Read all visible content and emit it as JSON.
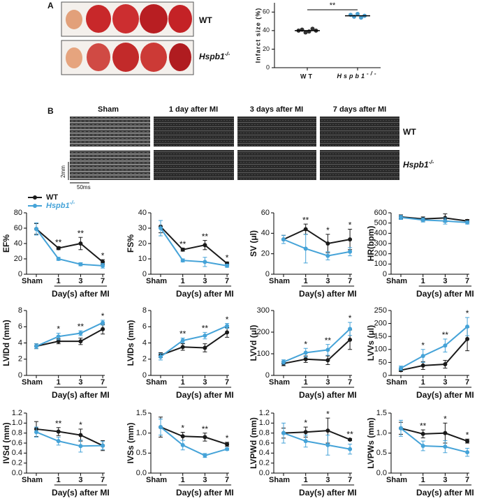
{
  "panels": {
    "a": "A",
    "b": "B",
    "genotypes": [
      "WT",
      "Hspb1-/-"
    ],
    "echo_headers": [
      "Sham",
      "1 day after MI",
      "3 days after MI",
      "7 days after MI"
    ],
    "scale_y": "2mm",
    "scale_x": "50ms"
  },
  "legend": [
    {
      "name": "WT",
      "color": "#1a1a1a"
    },
    {
      "name": "Hspb1-/-",
      "color": "#45a3d8"
    }
  ],
  "chart_data": [
    {
      "type": "dot",
      "ylabel": "Infarct size (%)",
      "categories": [
        "WT",
        "Hspb1-/-"
      ],
      "values": [
        [
          40,
          41,
          38,
          39,
          42,
          40
        ],
        [
          57,
          55,
          58,
          54,
          56
        ]
      ],
      "means": [
        40,
        56
      ],
      "colors": [
        "#333333",
        "#4a9fd0"
      ],
      "ylim": [
        0,
        70
      ],
      "yticks": [
        0,
        20,
        40,
        60
      ],
      "annotation": "**"
    },
    {
      "type": "line",
      "ylabel": "EF%",
      "xlabel": "Day(s) after MI",
      "categories": [
        "Sham",
        "1",
        "3",
        "7"
      ],
      "ylim": [
        0,
        80
      ],
      "yticks": [
        0,
        20,
        40,
        60,
        80
      ],
      "stars": [
        null,
        "**",
        "**",
        "*"
      ],
      "series": [
        {
          "color": "#1a1a1a",
          "values": [
            59,
            34,
            40,
            16
          ],
          "errors": [
            7,
            2,
            8,
            3
          ]
        },
        {
          "color": "#45a3d8",
          "values": [
            59,
            20,
            13,
            11
          ],
          "errors": [
            8,
            2,
            2,
            3
          ]
        }
      ]
    },
    {
      "type": "line",
      "ylabel": "FS%",
      "xlabel": "Day(s) after MI",
      "categories": [
        "Sham",
        "1",
        "3",
        "7"
      ],
      "ylim": [
        0,
        40
      ],
      "yticks": [
        0,
        10,
        20,
        30,
        40
      ],
      "stars": [
        null,
        "**",
        "**",
        "*"
      ],
      "series": [
        {
          "color": "#1a1a1a",
          "values": [
            31,
            16,
            19,
            7
          ],
          "errors": [
            4,
            1,
            3,
            1
          ]
        },
        {
          "color": "#45a3d8",
          "values": [
            30,
            9,
            8,
            5.5
          ],
          "errors": [
            5,
            1,
            3,
            1
          ]
        }
      ]
    },
    {
      "type": "line",
      "ylabel": "SV (μl)",
      "xlabel": "Day(s) after MI",
      "categories": [
        "Sham",
        "1",
        "3",
        "7"
      ],
      "ylim": [
        0,
        60
      ],
      "yticks": [
        0,
        20,
        40,
        60
      ],
      "stars": [
        null,
        "**",
        "*",
        "*"
      ],
      "series": [
        {
          "color": "#1a1a1a",
          "values": [
            34,
            44,
            30,
            34
          ],
          "errors": [
            4,
            5,
            9,
            10
          ]
        },
        {
          "color": "#45a3d8",
          "values": [
            34,
            25,
            18,
            22
          ],
          "errors": [
            4,
            14,
            4,
            4
          ]
        }
      ]
    },
    {
      "type": "line",
      "ylabel": "HR(bpm)",
      "xlabel": "Day(s) after MI",
      "categories": [
        "Sham",
        "1",
        "3",
        "7"
      ],
      "ylim": [
        0,
        600
      ],
      "yticks": [
        0,
        100,
        200,
        300,
        400,
        500,
        600
      ],
      "series": [
        {
          "color": "#1a1a1a",
          "values": [
            560,
            540,
            550,
            520
          ],
          "errors": [
            20,
            20,
            40,
            15
          ]
        },
        {
          "color": "#45a3d8",
          "values": [
            555,
            530,
            520,
            505
          ],
          "errors": [
            20,
            20,
            30,
            15
          ]
        }
      ]
    },
    {
      "type": "line",
      "ylabel": "LVIDd (mm)",
      "xlabel": "Day(s) after MI",
      "categories": [
        "Sham",
        "1",
        "3",
        "7"
      ],
      "ylim": [
        0,
        8
      ],
      "yticks": [
        0,
        2,
        4,
        6,
        8
      ],
      "stars": [
        null,
        "*",
        "**",
        "*"
      ],
      "series": [
        {
          "color": "#1a1a1a",
          "values": [
            3.6,
            4.2,
            4.2,
            5.7
          ],
          "errors": [
            0.3,
            0.3,
            0.4,
            0.6
          ]
        },
        {
          "color": "#45a3d8",
          "values": [
            3.6,
            4.8,
            5.2,
            6.5
          ],
          "errors": [
            0.3,
            0.4,
            0.3,
            0.3
          ]
        }
      ]
    },
    {
      "type": "line",
      "ylabel": "LVIDs (mm)",
      "xlabel": "Day(s) after MI",
      "categories": [
        "Sham",
        "1",
        "3",
        "7"
      ],
      "ylim": [
        0,
        8
      ],
      "yticks": [
        0,
        2,
        4,
        6,
        8
      ],
      "stars": [
        null,
        "**",
        "**",
        "*"
      ],
      "series": [
        {
          "color": "#1a1a1a",
          "values": [
            2.5,
            3.5,
            3.4,
            5.3
          ],
          "errors": [
            0.3,
            0.4,
            0.5,
            0.6
          ]
        },
        {
          "color": "#45a3d8",
          "values": [
            2.3,
            4.3,
            4.9,
            6.1
          ],
          "errors": [
            0.4,
            0.3,
            0.4,
            0.3
          ]
        }
      ]
    },
    {
      "type": "line",
      "ylabel": "LVVd (μl)",
      "xlabel": "Day(s) after MI",
      "categories": [
        "Sham",
        "1",
        "3",
        "7"
      ],
      "ylim": [
        0,
        300
      ],
      "yticks": [
        0,
        100,
        200,
        300
      ],
      "stars": [
        null,
        "*",
        "**",
        "*"
      ],
      "series": [
        {
          "color": "#1a1a1a",
          "values": [
            55,
            75,
            70,
            165
          ],
          "errors": [
            10,
            15,
            20,
            45
          ]
        },
        {
          "color": "#45a3d8",
          "values": [
            62,
            105,
            118,
            215
          ],
          "errors": [
            10,
            20,
            25,
            30
          ]
        }
      ]
    },
    {
      "type": "line",
      "ylabel": "LVVs (μl)",
      "xlabel": "Day(s) after MI",
      "categories": [
        "Sham",
        "1",
        "3",
        "7"
      ],
      "ylim": [
        0,
        250
      ],
      "yticks": [
        0,
        50,
        100,
        150,
        200,
        250
      ],
      "stars": [
        null,
        "*",
        "**",
        "*"
      ],
      "series": [
        {
          "color": "#1a1a1a",
          "values": [
            20,
            38,
            43,
            140
          ],
          "errors": [
            5,
            15,
            15,
            45
          ]
        },
        {
          "color": "#45a3d8",
          "values": [
            28,
            75,
            115,
            188
          ],
          "errors": [
            8,
            25,
            25,
            35
          ]
        }
      ]
    },
    {
      "type": "line",
      "ylabel": "IVSd (mm)",
      "xlabel": "Day(s) after MI",
      "categories": [
        "Sham",
        "1",
        "3",
        "7"
      ],
      "ylim": [
        0,
        1.2
      ],
      "yticks": [
        {
          "value": 0,
          "label": "0.0"
        },
        0.2,
        0.4,
        0.6,
        0.8,
        {
          "value": 1,
          "label": "1.0"
        },
        1.2
      ],
      "stars": [
        null,
        "**",
        "*",
        null
      ],
      "series": [
        {
          "color": "#1a1a1a",
          "values": [
            0.88,
            0.83,
            0.76,
            0.55
          ],
          "errors": [
            0.15,
            0.08,
            0.12,
            0.1
          ]
        },
        {
          "color": "#45a3d8",
          "values": [
            0.82,
            0.64,
            0.54,
            0.55
          ],
          "errors": [
            0.1,
            0.08,
            0.12,
            0.08
          ]
        }
      ]
    },
    {
      "type": "line",
      "ylabel": "IVSs (mm)",
      "xlabel": "Day(s) after MI",
      "categories": [
        "Sham",
        "1",
        "3",
        "7"
      ],
      "ylim": [
        0,
        1.5
      ],
      "yticks": [
        {
          "value": 0,
          "label": "0.0"
        },
        0.5,
        {
          "value": 1,
          "label": "1.0"
        },
        1.5
      ],
      "stars": [
        null,
        "*",
        "**",
        "*"
      ],
      "series": [
        {
          "color": "#1a1a1a",
          "values": [
            1.15,
            0.92,
            0.9,
            0.72
          ],
          "errors": [
            0.25,
            0.1,
            0.1,
            0.05
          ]
        },
        {
          "color": "#45a3d8",
          "values": [
            1.15,
            0.7,
            0.44,
            0.6
          ],
          "errors": [
            0.2,
            0.12,
            0.05,
            0.03
          ]
        }
      ]
    },
    {
      "type": "line",
      "ylabel": "LVPWd (mm)",
      "xlabel": "Day(s) after MI",
      "categories": [
        "Sham",
        "1",
        "3",
        "7"
      ],
      "ylim": [
        0,
        1.2
      ],
      "yticks": [
        {
          "value": 0,
          "label": "0.0"
        },
        0.2,
        0.4,
        0.6,
        0.8,
        {
          "value": 1,
          "label": "1.0"
        },
        1.2
      ],
      "stars": [
        null,
        "*",
        "*",
        "**"
      ],
      "series": [
        {
          "color": "#1a1a1a",
          "values": [
            0.8,
            0.82,
            0.85,
            0.67
          ],
          "errors": [
            0.1,
            0.1,
            0.25,
            0.02
          ]
        },
        {
          "color": "#45a3d8",
          "values": [
            0.8,
            0.64,
            0.56,
            0.48
          ],
          "errors": [
            0.2,
            0.12,
            0.2,
            0.1
          ]
        }
      ]
    },
    {
      "type": "line",
      "ylabel": "LVPWs (mm)",
      "xlabel": "Day(s) after MI",
      "categories": [
        "Sham",
        "1",
        "3",
        "7"
      ],
      "ylim": [
        0,
        1.5
      ],
      "yticks": [
        {
          "value": 0,
          "label": "0.0"
        },
        0.5,
        {
          "value": 1,
          "label": "1.0"
        },
        1.5
      ],
      "stars": [
        null,
        "**",
        "*",
        "*"
      ],
      "series": [
        {
          "color": "#1a1a1a",
          "values": [
            1.12,
            0.98,
            1.0,
            0.8
          ],
          "errors": [
            0.15,
            0.1,
            0.25,
            0.05
          ]
        },
        {
          "color": "#45a3d8",
          "values": [
            1.12,
            0.68,
            0.66,
            0.52
          ],
          "errors": [
            0.2,
            0.12,
            0.15,
            0.1
          ]
        }
      ]
    }
  ]
}
